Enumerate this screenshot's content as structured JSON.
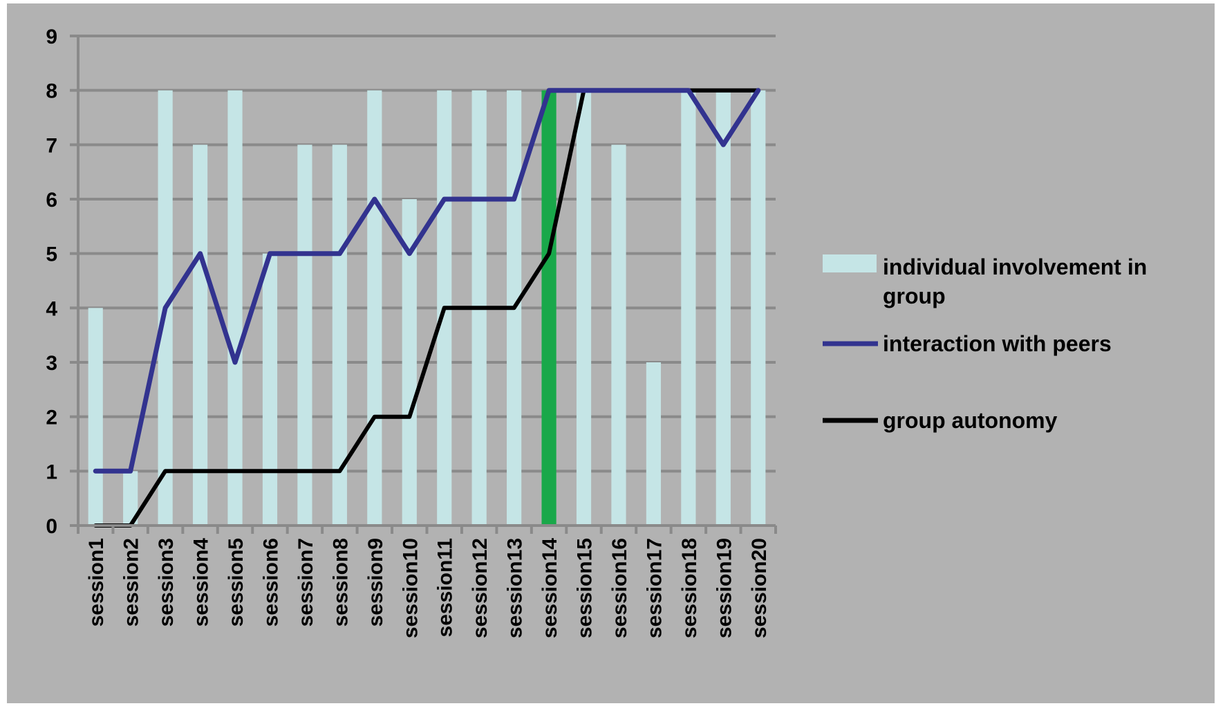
{
  "chart_data": {
    "type": "bar",
    "categories": [
      "session1",
      "session2",
      "session3",
      "session4",
      "session5",
      "session6",
      "session7",
      "session8",
      "session9",
      "session10",
      "session11",
      "session12",
      "session13",
      "session14",
      "session15",
      "session16",
      "session17",
      "session18",
      "session19",
      "session20"
    ],
    "ylim": [
      0,
      9
    ],
    "yticks": [
      0,
      1,
      2,
      3,
      4,
      5,
      6,
      7,
      8,
      9
    ],
    "grid": true,
    "legend_position": "right",
    "series": [
      {
        "name": "individual involvement in group",
        "kind": "bar",
        "values": [
          4,
          1,
          8,
          7,
          8,
          5,
          7,
          7,
          8,
          6,
          8,
          8,
          8,
          8,
          8,
          7,
          3,
          8,
          8,
          8
        ]
      },
      {
        "name": "interaction with peers",
        "kind": "line",
        "values": [
          1,
          1,
          4,
          5,
          3,
          5,
          5,
          5,
          6,
          5,
          6,
          6,
          6,
          8,
          8,
          8,
          8,
          8,
          7,
          8
        ]
      },
      {
        "name": "group autonomy",
        "kind": "line",
        "values": [
          0,
          0,
          1,
          1,
          1,
          1,
          1,
          1,
          2,
          2,
          4,
          4,
          4,
          5,
          8,
          8,
          8,
          8,
          8,
          8
        ]
      }
    ],
    "highlight": {
      "category": "session14"
    },
    "title": "",
    "xlabel": "",
    "ylabel": ""
  },
  "colors": {
    "background": "#b2b2b2",
    "bar": "#c5e5e6",
    "highlight_bar": "#19a84a",
    "interaction_line": "#32338f",
    "autonomy_line": "#000000",
    "grid": "#8a8a8a"
  }
}
